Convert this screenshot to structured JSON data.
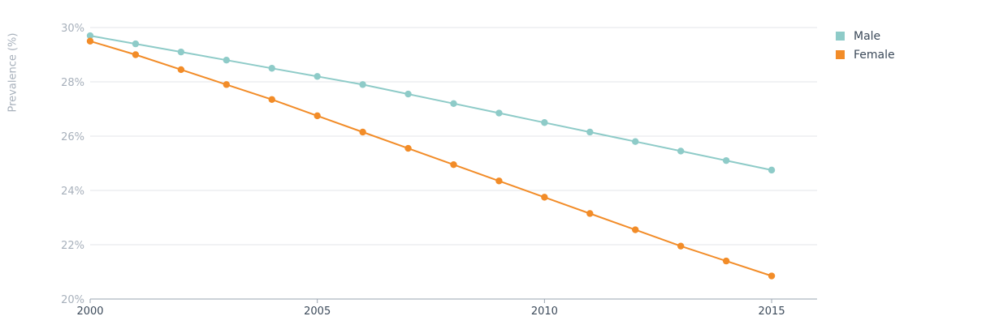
{
  "chart_data": {
    "type": "line",
    "title": "",
    "xlabel": "",
    "ylabel": "Prevalence (%)",
    "x": [
      2000,
      2001,
      2002,
      2003,
      2004,
      2005,
      2006,
      2007,
      2008,
      2009,
      2010,
      2011,
      2012,
      2013,
      2014,
      2015
    ],
    "xticks": [
      2000,
      2005,
      2010,
      2015
    ],
    "xlim": [
      2000,
      2016.0
    ],
    "ylim": [
      20,
      30
    ],
    "yticks": [
      20,
      22,
      24,
      26,
      28,
      30
    ],
    "ytick_suffix": "%",
    "grid": true,
    "legend_position": "top-right",
    "series": [
      {
        "name": "Male",
        "color": "#8ecbc8",
        "values": [
          29.7,
          29.4,
          29.1,
          28.8,
          28.5,
          28.2,
          27.9,
          27.55,
          27.2,
          26.85,
          26.5,
          26.15,
          25.8,
          25.45,
          25.1,
          24.75
        ]
      },
      {
        "name": "Female",
        "color": "#f28c28",
        "values": [
          29.5,
          29.0,
          28.45,
          27.9,
          27.35,
          26.75,
          26.15,
          25.55,
          24.95,
          24.35,
          23.75,
          23.15,
          22.55,
          21.95,
          21.4,
          20.85
        ]
      }
    ]
  }
}
